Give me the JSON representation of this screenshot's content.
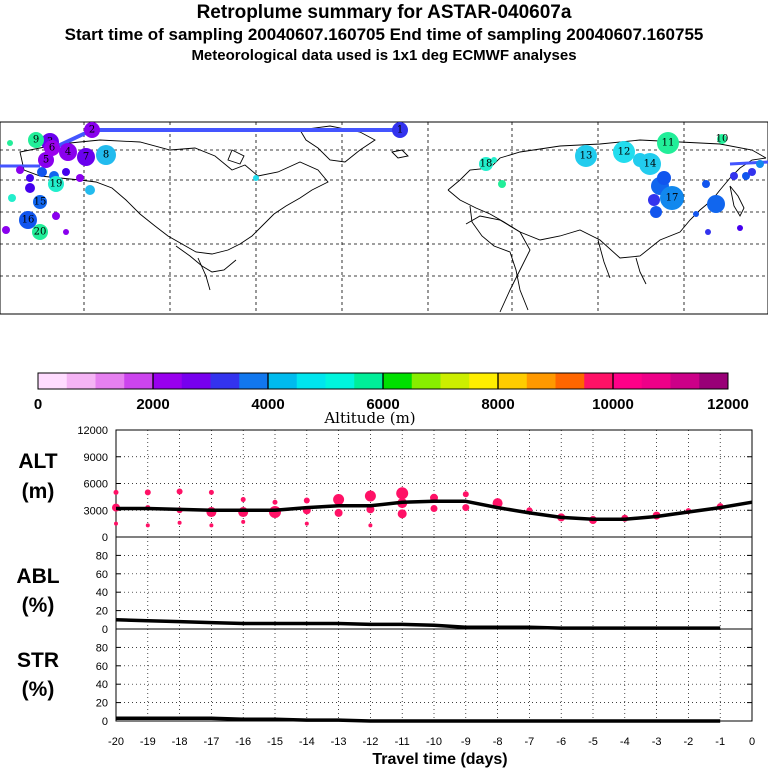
{
  "header": {
    "title": "Retroplume summary for ASTAR-040607a",
    "line2": "Start time of sampling 20040607.160705     End time of sampling 20040607.160755",
    "line3": "Meteorological data used is 1x1 deg ECMWF analyses"
  },
  "map": {
    "trajectory_color": "#4455ff",
    "markers": [
      {
        "label": "1",
        "color": "#3333ee"
      },
      {
        "label": "2",
        "color": "#8a00ee"
      },
      {
        "label": "3",
        "color": "#6a00ee"
      },
      {
        "label": "4",
        "color": "#8a00ee"
      },
      {
        "label": "5",
        "color": "#8a00ee"
      },
      {
        "label": "6",
        "color": "#9a00ee"
      },
      {
        "label": "7",
        "color": "#6a00ee"
      },
      {
        "label": "8",
        "color": "#22bbee"
      },
      {
        "label": "9",
        "color": "#22ee99"
      },
      {
        "label": "10",
        "color": "#22ee99"
      },
      {
        "label": "11",
        "color": "#22ee99"
      },
      {
        "label": "12",
        "color": "#22ddee"
      },
      {
        "label": "13",
        "color": "#22ccee"
      },
      {
        "label": "14",
        "color": "#22ccee"
      },
      {
        "label": "15",
        "color": "#1166ee"
      },
      {
        "label": "16",
        "color": "#1155ee"
      },
      {
        "label": "17",
        "color": "#1188ee"
      },
      {
        "label": "18",
        "color": "#22eecc"
      },
      {
        "label": "19",
        "color": "#22eecc"
      },
      {
        "label": "20",
        "color": "#22ee99"
      }
    ]
  },
  "colorbar": {
    "label": "Altitude (m)",
    "ticks": [
      "0",
      "2000",
      "4000",
      "6000",
      "8000",
      "10000",
      "12000"
    ],
    "colors": [
      "#ffdcff",
      "#f5b4f5",
      "#e680f0",
      "#cc44ee",
      "#9900ee",
      "#7700ee",
      "#3333ee",
      "#1177ee",
      "#00bbee",
      "#00e5ee",
      "#00f5dd",
      "#00ee99",
      "#00e000",
      "#88ee00",
      "#ccee00",
      "#ffee00",
      "#ffcc00",
      "#ff9900",
      "#ff6600",
      "#ff1166",
      "#ff0088",
      "#ee0088",
      "#cc0088",
      "#990077"
    ]
  },
  "chart_data": [
    {
      "type": "line",
      "title": "ALT (m)",
      "title_lines": [
        "ALT",
        "(m)"
      ],
      "xlabel": "Travel time (days)",
      "xlim": [
        -20,
        0
      ],
      "ylim": [
        0,
        12000
      ],
      "yticks": [
        0,
        3000,
        6000,
        9000,
        12000
      ],
      "ytick_labels": [
        "0",
        "3000",
        "6000",
        "9000",
        "12000"
      ],
      "xticks": [
        -20,
        -19,
        -18,
        -17,
        -16,
        -15,
        -14,
        -13,
        -12,
        -11,
        -10,
        -9,
        -8,
        -7,
        -6,
        -5,
        -4,
        -3,
        -2,
        -1,
        0
      ],
      "xtick_labels": [
        "-20",
        "-19",
        "-18",
        "-17",
        "-16",
        "-15",
        "-14",
        "-13",
        "-12",
        "-11",
        "-10",
        "-9",
        "-8",
        "-7",
        "-6",
        "-5",
        "-4",
        "-3",
        "-2",
        "-1",
        "0"
      ],
      "series": [
        {
          "name": "mean altitude",
          "x": [
            -20,
            -19,
            -18,
            -17,
            -16,
            -15,
            -14,
            -13,
            -12,
            -11,
            -10,
            -9,
            -8,
            -7,
            -6,
            -5,
            -4,
            -3,
            -2,
            -1,
            0
          ],
          "y": [
            3200,
            3200,
            3100,
            3000,
            3000,
            3000,
            3300,
            3500,
            3500,
            3900,
            4000,
            4000,
            3300,
            2700,
            2200,
            2000,
            2000,
            2300,
            2800,
            3300,
            3900
          ]
        }
      ],
      "clusters": {
        "x": [
          -20,
          -20,
          -20,
          -19,
          -19,
          -19,
          -18,
          -18,
          -18,
          -17,
          -17,
          -17,
          -16,
          -16,
          -16,
          -15,
          -15,
          -14,
          -14,
          -14,
          -13,
          -13,
          -12,
          -12,
          -12,
          -11,
          -11,
          -11,
          -10,
          -10,
          -9,
          -9,
          -8,
          -7,
          -6,
          -5,
          -4,
          -3,
          -2,
          -1
        ],
        "y": [
          5000,
          3300,
          1500,
          5000,
          3300,
          1300,
          5100,
          3000,
          1600,
          5000,
          2800,
          1300,
          4200,
          2800,
          1700,
          3900,
          2800,
          4100,
          3000,
          1500,
          4200,
          2700,
          4600,
          3100,
          1300,
          4900,
          3800,
          2600,
          4400,
          3200,
          4800,
          3300,
          3800,
          3000,
          2200,
          1900,
          2100,
          2400,
          2900,
          3400
        ],
        "size": [
          2.5,
          4,
          2,
          3,
          2.5,
          2,
          3,
          3,
          2,
          2.5,
          5,
          2,
          2.5,
          5,
          2,
          2.5,
          6,
          3,
          4,
          2,
          5.5,
          4,
          5.5,
          4,
          2,
          6,
          5,
          4.5,
          4,
          3.5,
          3,
          3.5,
          5,
          3,
          4,
          4,
          3.5,
          4,
          3,
          3.5
        ]
      }
    },
    {
      "type": "line",
      "title": "ABL (%)",
      "title_lines": [
        "ABL",
        "(%)"
      ],
      "xlim": [
        -20,
        0
      ],
      "ylim": [
        0,
        100
      ],
      "yticks": [
        0,
        20,
        40,
        60,
        80
      ],
      "ytick_labels": [
        "0",
        "20",
        "40",
        "60",
        "80"
      ],
      "series": [
        {
          "name": "fraction in ABL",
          "x": [
            -20,
            -19,
            -18,
            -17,
            -16,
            -15,
            -14,
            -13,
            -12,
            -11,
            -10,
            -9,
            -8,
            -7,
            -6,
            -5,
            -4,
            -3,
            -2,
            -1
          ],
          "y": [
            10,
            9,
            8,
            7,
            6,
            6,
            6,
            6,
            5,
            5,
            4,
            2,
            2,
            2,
            1,
            1,
            1,
            1,
            1,
            1
          ]
        }
      ]
    },
    {
      "type": "line",
      "title": "STR (%)",
      "title_lines": [
        "STR",
        "(%)"
      ],
      "xlim": [
        -20,
        0
      ],
      "ylim": [
        0,
        100
      ],
      "yticks": [
        0,
        20,
        40,
        60,
        80
      ],
      "ytick_labels": [
        "0",
        "20",
        "40",
        "60",
        "80"
      ],
      "series": [
        {
          "name": "fraction in stratosphere",
          "x": [
            -20,
            -19,
            -18,
            -17,
            -16,
            -15,
            -14,
            -13,
            -12,
            -11,
            -10,
            -9,
            -8,
            -7,
            -6,
            -5,
            -4,
            -3,
            -2,
            -1
          ],
          "y": [
            3,
            3,
            3,
            3,
            2,
            2,
            1,
            1,
            0,
            0,
            0,
            0,
            0,
            0,
            0,
            0,
            0,
            0,
            0,
            0
          ]
        }
      ]
    }
  ]
}
